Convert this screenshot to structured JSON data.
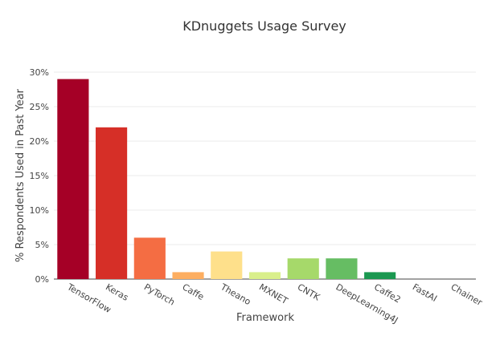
{
  "chart_data": {
    "type": "bar",
    "title": "KDnuggets Usage Survey",
    "xlabel": "Framework",
    "ylabel": "% Respondents Used in Past Year",
    "ylim": [
      0,
      30
    ],
    "yticks": [
      0,
      5,
      10,
      15,
      20,
      25,
      30
    ],
    "ytick_labels": [
      "0%",
      "5%",
      "10%",
      "15%",
      "20%",
      "25%",
      "30%"
    ],
    "grid": true,
    "legend": "none",
    "categories": [
      "TensorFlow",
      "Keras",
      "PyTorch",
      "Caffe",
      "Theano",
      "MXNET",
      "CNTK",
      "DeepLearning4J",
      "Caffe2",
      "FastAI",
      "Chainer"
    ],
    "values": [
      29,
      22,
      6,
      1,
      4,
      1,
      3,
      3,
      1,
      0,
      0
    ],
    "colors": [
      "#a50026",
      "#d62f27",
      "#f46d43",
      "#fdae61",
      "#fee08b",
      "#d9ef8b",
      "#a6d96a",
      "#66bd63",
      "#1a9850",
      "#006837",
      "#004529"
    ]
  }
}
